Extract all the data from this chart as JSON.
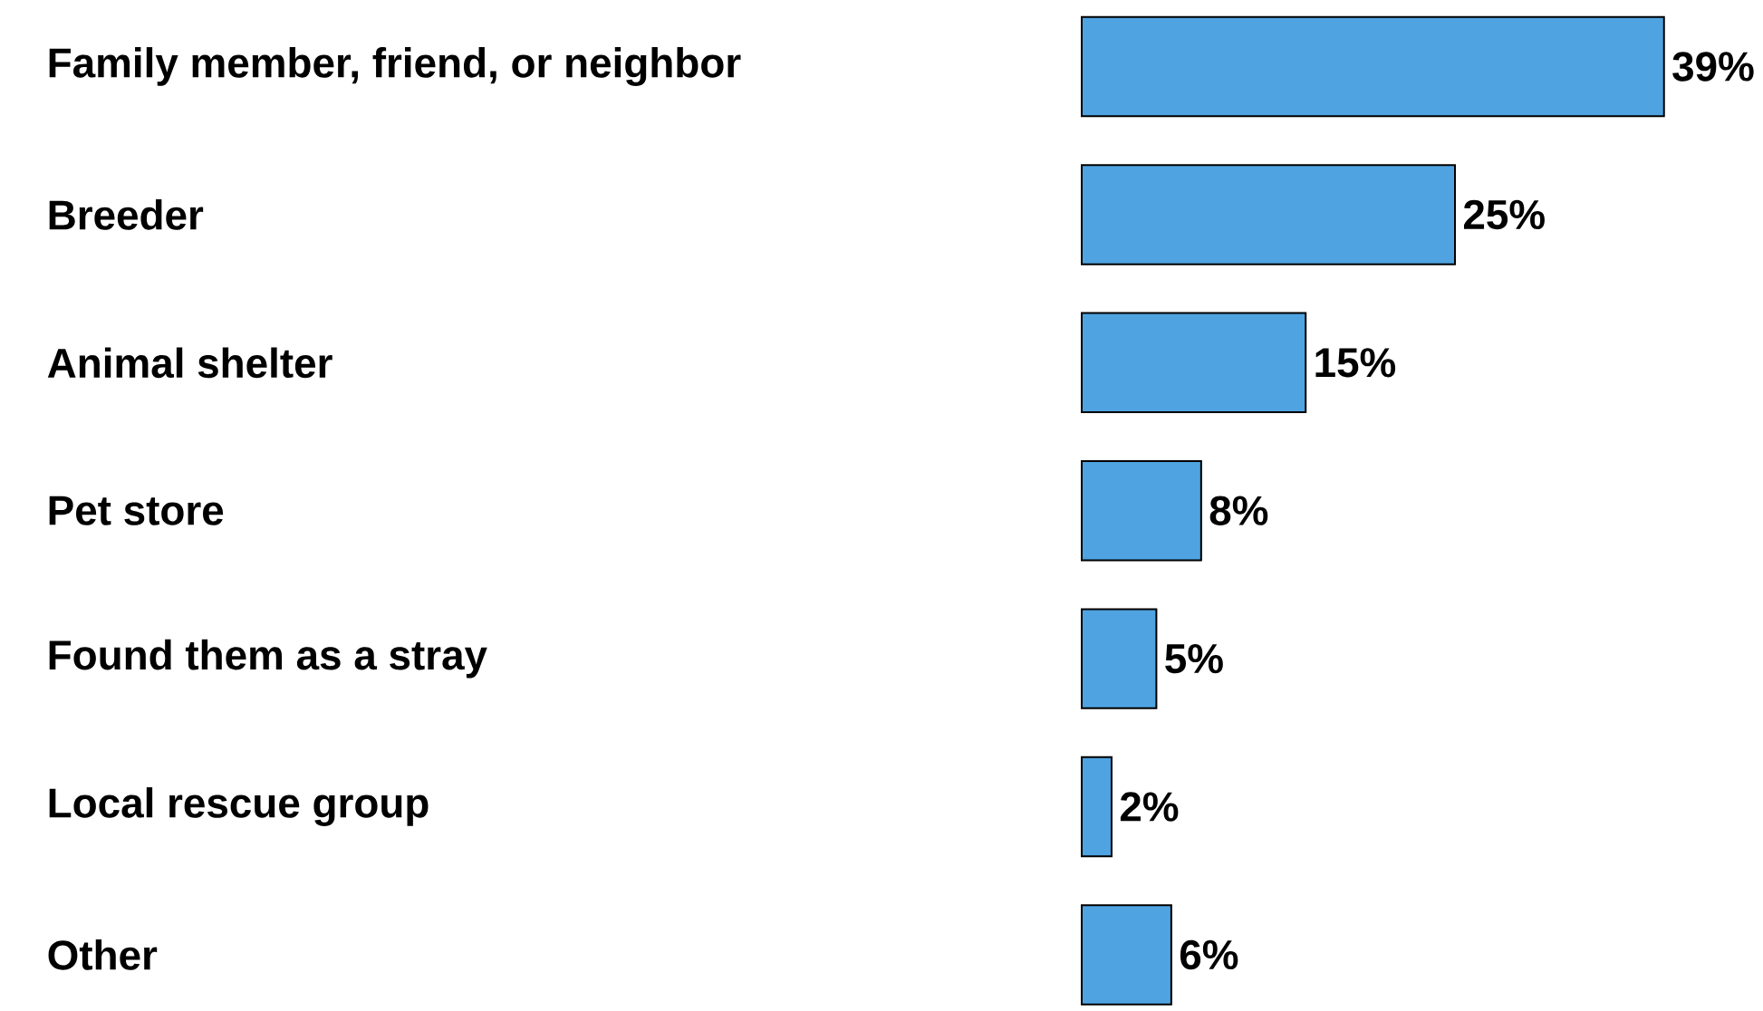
{
  "chart_data": {
    "type": "bar",
    "orientation": "horizontal",
    "categories": [
      "Family member, friend, or neighbor",
      "Breeder",
      "Animal shelter",
      "Pet store",
      "Found them as a stray",
      "Local rescue group",
      "Other"
    ],
    "values": [
      39,
      25,
      15,
      8,
      5,
      2,
      6
    ],
    "value_labels": [
      "39%",
      "25%",
      "15%",
      "8%",
      "5%",
      "2%",
      "6%"
    ],
    "color": "#4fa3e0",
    "grid": false,
    "tick_labels": "y"
  }
}
